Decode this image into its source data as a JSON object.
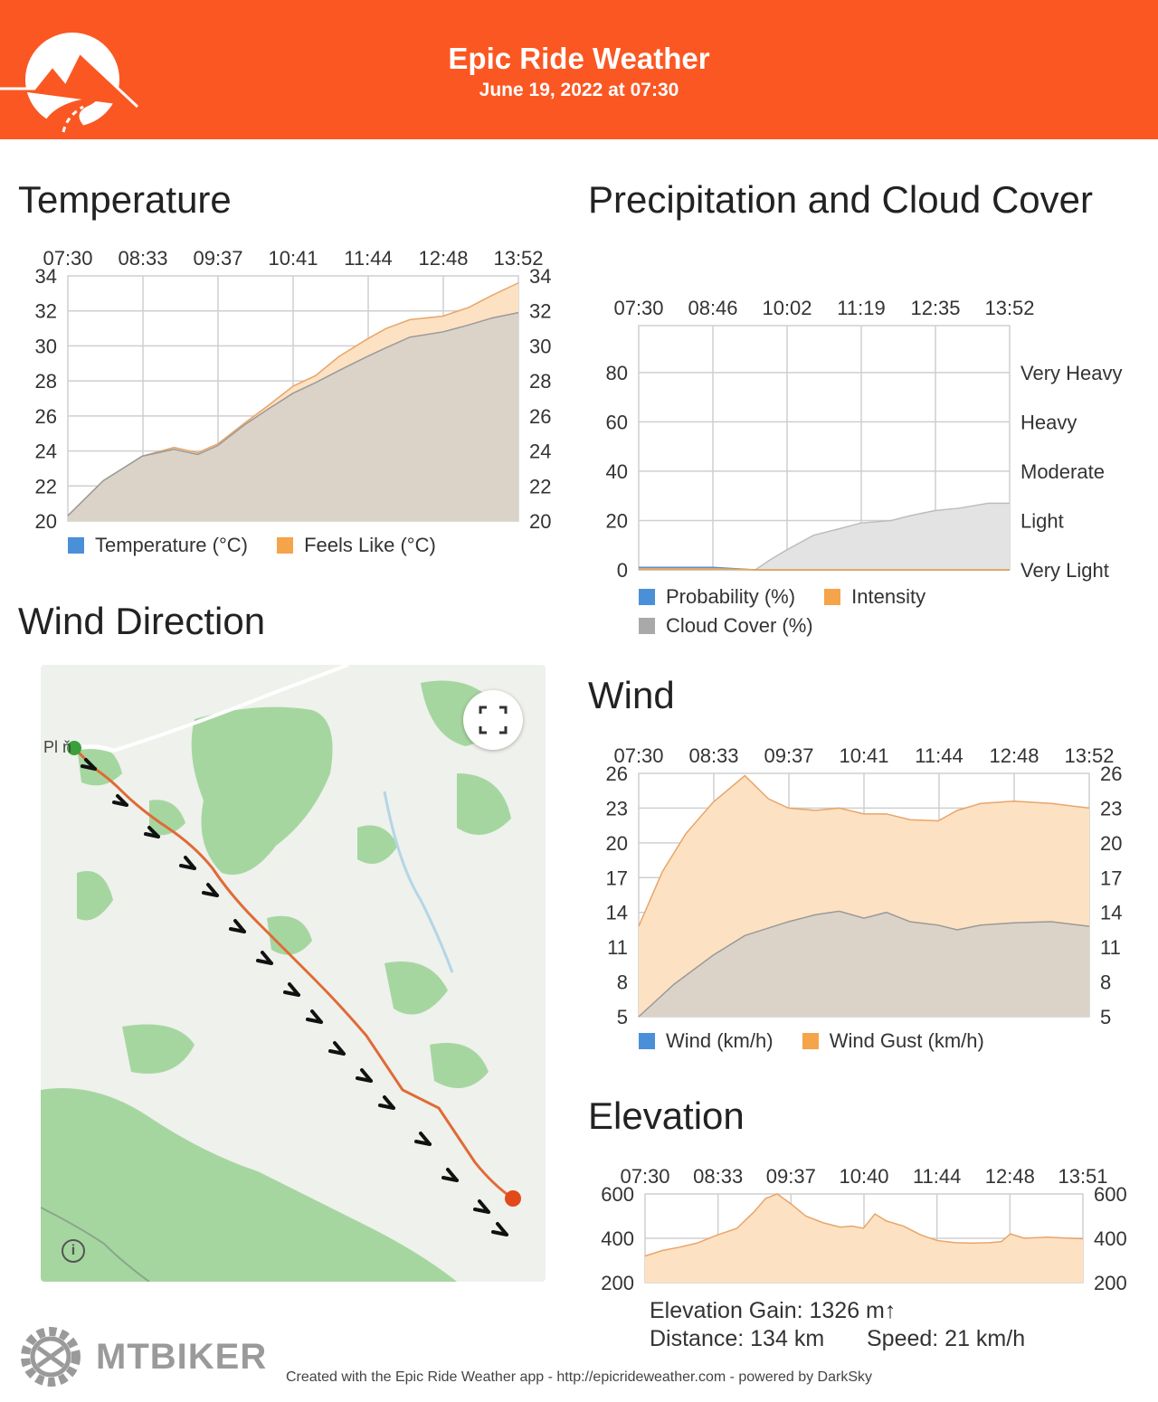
{
  "header": {
    "app_title": "Epic Ride Weather",
    "date": "June 19, 2022 at 07:30",
    "brand_color": "#fb5723"
  },
  "temperature": {
    "title": "Temperature",
    "legend": [
      "Temperature (°C)",
      "Feels Like (°C)"
    ],
    "chart_data": {
      "type": "area",
      "x_ticks": [
        "07:30",
        "08:33",
        "09:37",
        "10:41",
        "11:44",
        "12:48",
        "13:52"
      ],
      "ylim": [
        20,
        34
      ],
      "y_ticks": [
        20,
        22,
        24,
        26,
        28,
        30,
        32,
        34
      ],
      "grid": true,
      "legend_position": "bottom",
      "series": [
        {
          "name": "Temperature (°C)",
          "color": "#4a90d9",
          "x": [
            "07:30",
            "08:00",
            "08:33",
            "09:00",
            "09:20",
            "09:37",
            "10:00",
            "10:20",
            "10:41",
            "11:00",
            "11:20",
            "11:44",
            "12:00",
            "12:20",
            "12:48",
            "13:10",
            "13:30",
            "13:52"
          ],
          "values": [
            20.3,
            22.3,
            23.7,
            24.1,
            23.8,
            24.3,
            25.5,
            26.4,
            27.3,
            27.9,
            28.6,
            29.4,
            29.9,
            30.5,
            30.8,
            31.2,
            31.6,
            31.9
          ]
        },
        {
          "name": "Feels Like (°C)",
          "color": "#f5a449",
          "x": [
            "07:30",
            "08:00",
            "08:33",
            "09:00",
            "09:20",
            "09:37",
            "10:00",
            "10:20",
            "10:41",
            "11:00",
            "11:20",
            "11:44",
            "12:00",
            "12:20",
            "12:48",
            "13:10",
            "13:30",
            "13:52"
          ],
          "values": [
            20.3,
            22.3,
            23.7,
            24.2,
            23.9,
            24.4,
            25.6,
            26.6,
            27.7,
            28.3,
            29.4,
            30.4,
            31.0,
            31.5,
            31.7,
            32.2,
            32.9,
            33.6
          ]
        }
      ]
    }
  },
  "precipitation": {
    "title": "Precipitation and Cloud Cover",
    "legend": [
      "Probability (%)",
      "Intensity",
      "Cloud Cover (%)"
    ],
    "chart_data": {
      "type": "area",
      "x_ticks": [
        "07:30",
        "08:46",
        "10:02",
        "11:19",
        "12:35",
        "13:52"
      ],
      "ylim": [
        0,
        100
      ],
      "y_ticks": [
        0,
        20,
        40,
        60,
        80
      ],
      "right_labels": [
        "Very Light",
        "Light",
        "Moderate",
        "Heavy",
        "Very Heavy"
      ],
      "grid": true,
      "legend_position": "bottom",
      "series": [
        {
          "name": "Probability (%)",
          "color": "#4a90d9",
          "x": [
            "07:30",
            "08:46",
            "09:30",
            "10:02",
            "11:19",
            "12:35",
            "13:52"
          ],
          "values": [
            1,
            1,
            0,
            0,
            0,
            0,
            0
          ]
        },
        {
          "name": "Intensity",
          "color": "#f5a449",
          "x": [
            "07:30",
            "08:46",
            "09:30",
            "10:02",
            "11:19",
            "12:35",
            "13:52"
          ],
          "values": [
            0.5,
            0.5,
            0,
            0,
            0,
            0,
            0
          ]
        },
        {
          "name": "Cloud Cover (%)",
          "color": "#a9a9a9",
          "x": [
            "07:30",
            "08:46",
            "09:30",
            "09:45",
            "10:02",
            "10:30",
            "11:00",
            "11:19",
            "11:50",
            "12:10",
            "12:35",
            "13:00",
            "13:30",
            "13:52"
          ],
          "values": [
            0,
            0,
            0,
            4,
            8,
            14,
            17,
            19,
            20,
            22,
            24,
            25,
            27,
            27
          ]
        }
      ]
    }
  },
  "wind_direction": {
    "title": "Wind Direction",
    "place_label": "Pl     ň"
  },
  "wind": {
    "title": "Wind",
    "legend": [
      "Wind (km/h)",
      "Wind Gust (km/h)"
    ],
    "chart_data": {
      "type": "area",
      "x_ticks": [
        "07:30",
        "08:33",
        "09:37",
        "10:41",
        "11:44",
        "12:48",
        "13:52"
      ],
      "ylim": [
        5,
        26
      ],
      "y_ticks": [
        5,
        8,
        11,
        14,
        17,
        20,
        23,
        26
      ],
      "grid": true,
      "legend_position": "bottom",
      "series": [
        {
          "name": "Wind (km/h)",
          "color": "#4a90d9",
          "x": [
            "07:30",
            "08:00",
            "08:33",
            "09:00",
            "09:37",
            "10:00",
            "10:20",
            "10:41",
            "11:00",
            "11:20",
            "11:44",
            "12:00",
            "12:20",
            "12:48",
            "13:20",
            "13:52"
          ],
          "values": [
            5,
            7.8,
            10.3,
            12,
            13.2,
            13.8,
            14.1,
            13.5,
            14,
            13.2,
            12.9,
            12.5,
            12.9,
            13.1,
            13.2,
            12.8
          ]
        },
        {
          "name": "Wind Gust (km/h)",
          "color": "#f5a449",
          "x": [
            "07:30",
            "07:50",
            "08:10",
            "08:33",
            "09:00",
            "09:20",
            "09:37",
            "10:00",
            "10:20",
            "10:41",
            "11:00",
            "11:20",
            "11:44",
            "12:00",
            "12:20",
            "12:48",
            "13:20",
            "13:52"
          ],
          "values": [
            12.8,
            17.5,
            20.8,
            23.5,
            25.8,
            23.8,
            23,
            22.8,
            23,
            22.5,
            22.5,
            22,
            21.9,
            22.8,
            23.4,
            23.6,
            23.4,
            23
          ]
        }
      ]
    }
  },
  "elevation": {
    "title": "Elevation",
    "gain_label": "Elevation Gain: 1326 m↑",
    "distance_label": "Distance: 134 km",
    "speed_label": "Speed: 21 km/h",
    "chart_data": {
      "type": "area",
      "x_ticks": [
        "07:30",
        "08:33",
        "09:37",
        "10:40",
        "11:44",
        "12:48",
        "13:51"
      ],
      "ylim": [
        200,
        600
      ],
      "y_ticks": [
        200,
        400,
        600
      ],
      "grid": true,
      "series": [
        {
          "name": "",
          "color": "#f5a449",
          "x": [
            "07:30",
            "07:45",
            "08:00",
            "08:15",
            "08:33",
            "08:50",
            "09:05",
            "09:15",
            "09:25",
            "09:37",
            "09:50",
            "10:05",
            "10:20",
            "10:30",
            "10:40",
            "10:50",
            "11:00",
            "11:15",
            "11:30",
            "11:44",
            "12:00",
            "12:15",
            "12:30",
            "12:40",
            "12:48",
            "13:00",
            "13:20",
            "13:40",
            "13:51"
          ],
          "values": [
            320,
            345,
            360,
            378,
            415,
            445,
            520,
            580,
            600,
            555,
            500,
            470,
            450,
            455,
            445,
            510,
            478,
            455,
            415,
            390,
            380,
            378,
            380,
            385,
            420,
            400,
            405,
            400,
            398
          ]
        }
      ]
    }
  },
  "watermark": "MTBIKER",
  "footer": "Created with the Epic Ride Weather app - http://epicrideweather.com - powered by DarkSky"
}
